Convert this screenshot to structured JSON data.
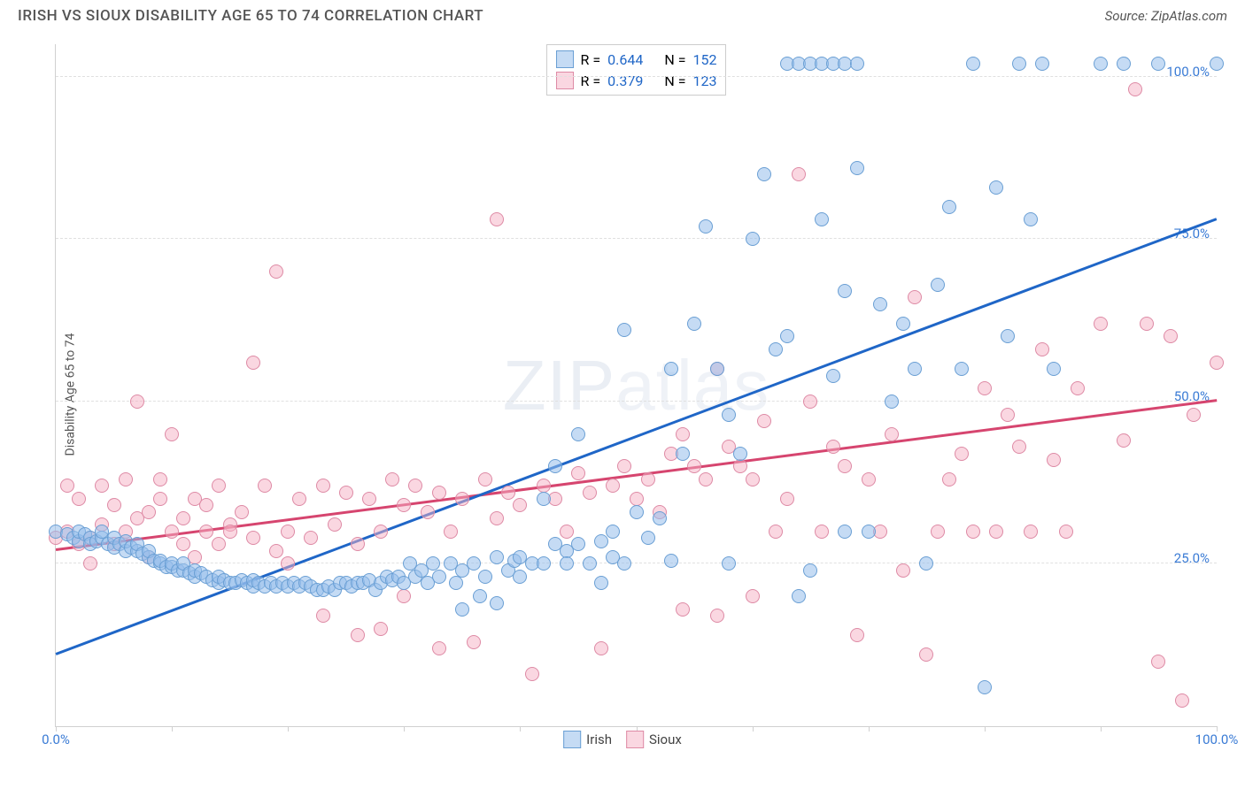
{
  "title": "IRISH VS SIOUX DISABILITY AGE 65 TO 74 CORRELATION CHART",
  "source": "Source: ZipAtlas.com",
  "ylabel": "Disability Age 65 to 74",
  "watermark_bold": "ZIP",
  "watermark_thin": "atlas",
  "chart": {
    "type": "scatter",
    "xlim": [
      0,
      100
    ],
    "ylim": [
      0,
      105
    ],
    "x_ticks": [
      0,
      10,
      20,
      30,
      40,
      50,
      60,
      70,
      80,
      90,
      100
    ],
    "x_tick_labels": {
      "0": "0.0%",
      "100": "100.0%"
    },
    "y_gridlines": [
      25,
      50,
      75,
      100
    ],
    "y_tick_labels": {
      "25": "25.0%",
      "50": "50.0%",
      "75": "75.0%",
      "100": "100.0%"
    },
    "axis_label_color": "#3a7bd5",
    "grid_color": "#e0e0e0",
    "background_color": "#ffffff",
    "point_radius": 8,
    "point_stroke_width": 1.5
  },
  "series": {
    "irish": {
      "label": "Irish",
      "fill": "rgba(150,190,235,0.55)",
      "stroke": "#6a9fd4",
      "R": "0.644",
      "N": "152",
      "trend": {
        "x1": 0,
        "y1": 11,
        "x2": 100,
        "y2": 78,
        "color": "#1f66c7",
        "width": 2.5
      },
      "points": [
        [
          0,
          30
        ],
        [
          1,
          29.5
        ],
        [
          1.5,
          29
        ],
        [
          2,
          28.5
        ],
        [
          2,
          30
        ],
        [
          2.5,
          29.5
        ],
        [
          3,
          29
        ],
        [
          3,
          28
        ],
        [
          3.5,
          28.5
        ],
        [
          4,
          29
        ],
        [
          4,
          30
        ],
        [
          4.5,
          28
        ],
        [
          5,
          27.5
        ],
        [
          5,
          29
        ],
        [
          5.5,
          28
        ],
        [
          6,
          27
        ],
        [
          6,
          28.5
        ],
        [
          6.5,
          27.5
        ],
        [
          7,
          27
        ],
        [
          7,
          28
        ],
        [
          7.5,
          26.5
        ],
        [
          8,
          26
        ],
        [
          8,
          27
        ],
        [
          8.5,
          25.5
        ],
        [
          9,
          25
        ],
        [
          9,
          25.5
        ],
        [
          9.5,
          24.5
        ],
        [
          10,
          24.5
        ],
        [
          10,
          25
        ],
        [
          10.5,
          24
        ],
        [
          11,
          24
        ],
        [
          11,
          25
        ],
        [
          11.5,
          23.5
        ],
        [
          12,
          23
        ],
        [
          12,
          24
        ],
        [
          12.5,
          23.5
        ],
        [
          13,
          23
        ],
        [
          13.5,
          22.5
        ],
        [
          14,
          22
        ],
        [
          14,
          23
        ],
        [
          14.5,
          22.5
        ],
        [
          15,
          22
        ],
        [
          15.5,
          22
        ],
        [
          16,
          22.5
        ],
        [
          16.5,
          22
        ],
        [
          17,
          21.5
        ],
        [
          17,
          22.5
        ],
        [
          17.5,
          22
        ],
        [
          18,
          21.5
        ],
        [
          18.5,
          22
        ],
        [
          19,
          21.5
        ],
        [
          19.5,
          22
        ],
        [
          20,
          21.5
        ],
        [
          20.5,
          22
        ],
        [
          21,
          21.5
        ],
        [
          21.5,
          22
        ],
        [
          22,
          21.5
        ],
        [
          22.5,
          21
        ],
        [
          23,
          21
        ],
        [
          23.5,
          21.5
        ],
        [
          24,
          21
        ],
        [
          24.5,
          22
        ],
        [
          25,
          22
        ],
        [
          25.5,
          21.5
        ],
        [
          26,
          22
        ],
        [
          26.5,
          22
        ],
        [
          27,
          22.5
        ],
        [
          27.5,
          21
        ],
        [
          28,
          22
        ],
        [
          28.5,
          23
        ],
        [
          29,
          22.5
        ],
        [
          29.5,
          23
        ],
        [
          30,
          22
        ],
        [
          30.5,
          25
        ],
        [
          31,
          23
        ],
        [
          31.5,
          24
        ],
        [
          32,
          22
        ],
        [
          32.5,
          25
        ],
        [
          33,
          23
        ],
        [
          34,
          25
        ],
        [
          34.5,
          22
        ],
        [
          35,
          24
        ],
        [
          35,
          18
        ],
        [
          36,
          25
        ],
        [
          36.5,
          20
        ],
        [
          37,
          23
        ],
        [
          38,
          26
        ],
        [
          38,
          19
        ],
        [
          39,
          24
        ],
        [
          39.5,
          25.5
        ],
        [
          40,
          26
        ],
        [
          40,
          23
        ],
        [
          41,
          25
        ],
        [
          42,
          35
        ],
        [
          42,
          25
        ],
        [
          43,
          28
        ],
        [
          43,
          40
        ],
        [
          44,
          27
        ],
        [
          44,
          25
        ],
        [
          45,
          45
        ],
        [
          45,
          28
        ],
        [
          46,
          25
        ],
        [
          47,
          28.5
        ],
        [
          47,
          22
        ],
        [
          48,
          30
        ],
        [
          48,
          26
        ],
        [
          49,
          25
        ],
        [
          49,
          61
        ],
        [
          50,
          33
        ],
        [
          51,
          29
        ],
        [
          52,
          32
        ],
        [
          53,
          25.5
        ],
        [
          53,
          55
        ],
        [
          54,
          42
        ],
        [
          55,
          62
        ],
        [
          56,
          77
        ],
        [
          57,
          55
        ],
        [
          58,
          25
        ],
        [
          58,
          48
        ],
        [
          59,
          42
        ],
        [
          60,
          75
        ],
        [
          61,
          85
        ],
        [
          62,
          58
        ],
        [
          63,
          60
        ],
        [
          64,
          20
        ],
        [
          65,
          24
        ],
        [
          66,
          78
        ],
        [
          67,
          54
        ],
        [
          68,
          30
        ],
        [
          68,
          67
        ],
        [
          69,
          86
        ],
        [
          70,
          30
        ],
        [
          71,
          65
        ],
        [
          72,
          50
        ],
        [
          73,
          62
        ],
        [
          74,
          55
        ],
        [
          75,
          25
        ],
        [
          76,
          68
        ],
        [
          77,
          80
        ],
        [
          78,
          55
        ],
        [
          79,
          102
        ],
        [
          80,
          6
        ],
        [
          81,
          83
        ],
        [
          82,
          60
        ],
        [
          83,
          102
        ],
        [
          84,
          78
        ],
        [
          85,
          102
        ],
        [
          86,
          55
        ],
        [
          90,
          102
        ],
        [
          92,
          102
        ],
        [
          95,
          102
        ],
        [
          100,
          102
        ],
        [
          63,
          102
        ],
        [
          64,
          102
        ],
        [
          65,
          102
        ],
        [
          66,
          102
        ],
        [
          67,
          102
        ],
        [
          68,
          102
        ],
        [
          69,
          102
        ]
      ]
    },
    "sioux": {
      "label": "Sioux",
      "fill": "rgba(245,175,195,0.50)",
      "stroke": "#de8aa5",
      "R": "0.379",
      "N": "123",
      "trend": {
        "x1": 0,
        "y1": 27,
        "x2": 100,
        "y2": 50,
        "color": "#d6456f",
        "width": 2.5
      },
      "points": [
        [
          0,
          29
        ],
        [
          1,
          30
        ],
        [
          1,
          37
        ],
        [
          2,
          28
        ],
        [
          2,
          35
        ],
        [
          3,
          29
        ],
        [
          3,
          25
        ],
        [
          4,
          31
        ],
        [
          4,
          37
        ],
        [
          5,
          28
        ],
        [
          5,
          34
        ],
        [
          6,
          30
        ],
        [
          6,
          38
        ],
        [
          7,
          32
        ],
        [
          7,
          50
        ],
        [
          8,
          33
        ],
        [
          8,
          26
        ],
        [
          9,
          38
        ],
        [
          9,
          35
        ],
        [
          10,
          30
        ],
        [
          10,
          45
        ],
        [
          11,
          28
        ],
        [
          11,
          32
        ],
        [
          12,
          35
        ],
        [
          12,
          26
        ],
        [
          13,
          30
        ],
        [
          13,
          34
        ],
        [
          14,
          28
        ],
        [
          14,
          37
        ],
        [
          15,
          31
        ],
        [
          15,
          30
        ],
        [
          16,
          33
        ],
        [
          17,
          29
        ],
        [
          17,
          56
        ],
        [
          18,
          37
        ],
        [
          19,
          27
        ],
        [
          19,
          70
        ],
        [
          20,
          30
        ],
        [
          20,
          25
        ],
        [
          21,
          35
        ],
        [
          22,
          29
        ],
        [
          23,
          37
        ],
        [
          23,
          17
        ],
        [
          24,
          31
        ],
        [
          25,
          36
        ],
        [
          26,
          28
        ],
        [
          26,
          14
        ],
        [
          27,
          35
        ],
        [
          28,
          30
        ],
        [
          28,
          15
        ],
        [
          29,
          38
        ],
        [
          30,
          34
        ],
        [
          30,
          20
        ],
        [
          31,
          37
        ],
        [
          32,
          33
        ],
        [
          33,
          36
        ],
        [
          33,
          12
        ],
        [
          34,
          30
        ],
        [
          35,
          35
        ],
        [
          36,
          13
        ],
        [
          37,
          38
        ],
        [
          38,
          32
        ],
        [
          38,
          78
        ],
        [
          39,
          36
        ],
        [
          40,
          34
        ],
        [
          41,
          8
        ],
        [
          42,
          37
        ],
        [
          43,
          35
        ],
        [
          44,
          30
        ],
        [
          45,
          39
        ],
        [
          46,
          36
        ],
        [
          47,
          12
        ],
        [
          48,
          37
        ],
        [
          49,
          40
        ],
        [
          50,
          35
        ],
        [
          51,
          38
        ],
        [
          52,
          33
        ],
        [
          53,
          42
        ],
        [
          54,
          45
        ],
        [
          54,
          18
        ],
        [
          55,
          40
        ],
        [
          56,
          38
        ],
        [
          57,
          17
        ],
        [
          57,
          55
        ],
        [
          58,
          43
        ],
        [
          59,
          40
        ],
        [
          60,
          38
        ],
        [
          60,
          20
        ],
        [
          61,
          47
        ],
        [
          62,
          30
        ],
        [
          63,
          35
        ],
        [
          64,
          85
        ],
        [
          65,
          50
        ],
        [
          66,
          30
        ],
        [
          67,
          43
        ],
        [
          68,
          40
        ],
        [
          69,
          14
        ],
        [
          70,
          38
        ],
        [
          71,
          30
        ],
        [
          72,
          45
        ],
        [
          73,
          24
        ],
        [
          74,
          66
        ],
        [
          75,
          11
        ],
        [
          76,
          30
        ],
        [
          77,
          38
        ],
        [
          78,
          42
        ],
        [
          79,
          30
        ],
        [
          80,
          52
        ],
        [
          81,
          30
        ],
        [
          82,
          48
        ],
        [
          83,
          43
        ],
        [
          84,
          30
        ],
        [
          85,
          58
        ],
        [
          86,
          41
        ],
        [
          87,
          30
        ],
        [
          88,
          52
        ],
        [
          90,
          62
        ],
        [
          92,
          44
        ],
        [
          93,
          98
        ],
        [
          94,
          62
        ],
        [
          95,
          10
        ],
        [
          96,
          60
        ],
        [
          97,
          4
        ],
        [
          98,
          48
        ],
        [
          100,
          56
        ]
      ]
    }
  },
  "legend_top_label_R": "R =",
  "legend_top_label_N": "N =",
  "legend_value_color": "#1f66c7"
}
